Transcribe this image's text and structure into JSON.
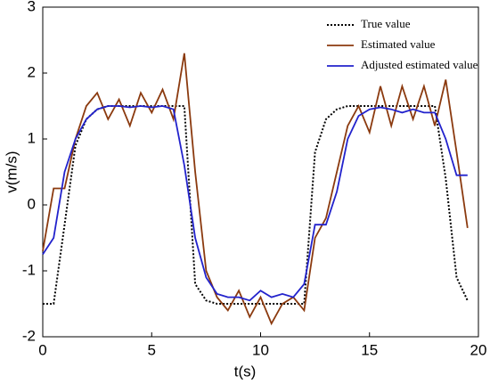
{
  "chart_data": {
    "type": "line",
    "xlabel": "t(s)",
    "ylabel": "v(m/s)",
    "x": [
      0,
      0.5,
      1,
      1.5,
      2,
      2.5,
      3,
      3.5,
      4,
      4.5,
      5,
      5.5,
      6,
      6.5,
      7,
      7.5,
      8,
      8.5,
      9,
      9.5,
      10,
      10.5,
      11,
      11.5,
      12,
      12.5,
      13,
      13.5,
      14,
      14.5,
      15,
      15.5,
      16,
      16.5,
      17,
      17.5,
      18,
      18.5,
      19,
      19.5
    ],
    "series": [
      {
        "name": "True value",
        "color": "#000000",
        "dash": true,
        "values": [
          -1.5,
          -1.5,
          -0.3,
          0.9,
          1.3,
          1.45,
          1.5,
          1.5,
          1.5,
          1.5,
          1.5,
          1.5,
          1.5,
          1.5,
          -1.2,
          -1.45,
          -1.5,
          -1.5,
          -1.5,
          -1.5,
          -1.5,
          -1.5,
          -1.5,
          -1.5,
          -1.5,
          0.8,
          1.3,
          1.45,
          1.5,
          1.5,
          1.5,
          1.5,
          1.5,
          1.5,
          1.5,
          1.5,
          1.5,
          0.4,
          -1.1,
          -1.45
        ]
      },
      {
        "name": "Estimated value",
        "color": "#8b3a0f",
        "dash": false,
        "values": [
          -0.7,
          0.25,
          0.25,
          1.0,
          1.5,
          1.7,
          1.3,
          1.6,
          1.2,
          1.7,
          1.4,
          1.75,
          1.3,
          2.3,
          0.5,
          -1.0,
          -1.4,
          -1.6,
          -1.3,
          -1.7,
          -1.4,
          -1.8,
          -1.5,
          -1.4,
          -1.6,
          -0.5,
          -0.2,
          0.5,
          1.2,
          1.5,
          1.1,
          1.8,
          1.2,
          1.8,
          1.3,
          1.8,
          1.2,
          1.9,
          0.8,
          -0.35
        ]
      },
      {
        "name": "Adjusted estimated value",
        "color": "#2222cc",
        "dash": false,
        "values": [
          -0.75,
          -0.5,
          0.5,
          1.0,
          1.3,
          1.45,
          1.5,
          1.5,
          1.48,
          1.5,
          1.48,
          1.5,
          1.45,
          0.6,
          -0.5,
          -1.1,
          -1.35,
          -1.4,
          -1.4,
          -1.45,
          -1.3,
          -1.4,
          -1.35,
          -1.4,
          -1.2,
          -0.3,
          -0.3,
          0.2,
          1.0,
          1.35,
          1.45,
          1.48,
          1.45,
          1.4,
          1.45,
          1.4,
          1.4,
          1.0,
          0.45,
          0.45
        ]
      }
    ],
    "xlim": [
      0,
      20
    ],
    "xticks": [
      0,
      5,
      10,
      15,
      20
    ],
    "ylim": [
      -2,
      3
    ],
    "yticks": [
      -2,
      -1,
      0,
      1,
      2,
      3
    ],
    "legend": "upper-right"
  }
}
